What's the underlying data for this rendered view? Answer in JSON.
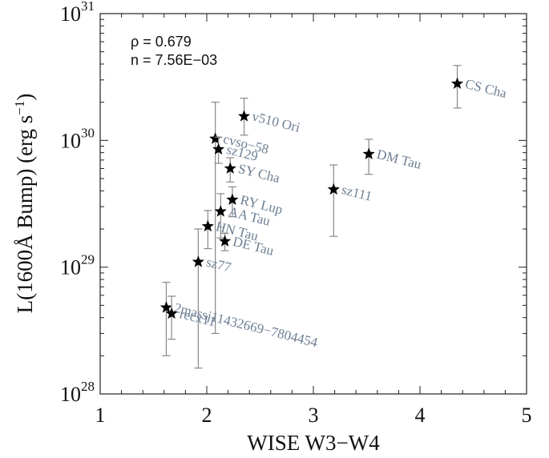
{
  "chart_data": {
    "type": "scatter",
    "xlabel": "WISE W3−W4",
    "ylabel": "L(1600Å Bump) (erg s",
    "ylabel_sup": "−1",
    "ylabel_close": ")",
    "xlim": [
      1,
      5
    ],
    "ylim": [
      1e+28,
      1e+31
    ],
    "yscale": "log",
    "x_ticks": [
      1,
      2,
      3,
      4,
      5
    ],
    "x_tick_labels": [
      "1",
      "2",
      "3",
      "4",
      "5"
    ],
    "y_ticks": [
      {
        "value": 1e+28,
        "base": "10",
        "exp": "28"
      },
      {
        "value": 1e+29,
        "base": "10",
        "exp": "29"
      },
      {
        "value": 1e+30,
        "base": "10",
        "exp": "30"
      },
      {
        "value": 1e+31,
        "base": "10",
        "exp": "31"
      }
    ],
    "annotations": [
      "ρ = 0.679",
      "n = 7.56E−03"
    ],
    "grid": false,
    "points": [
      {
        "label": "CS Cha",
        "x": 4.35,
        "y": 2.8e+30,
        "ylo": 1.8e+30,
        "yhi": 3.9e+30
      },
      {
        "label": "v510 Ori",
        "x": 2.35,
        "y": 1.55e+30,
        "ylo": 1.1e+30,
        "yhi": 2.15e+30
      },
      {
        "label": "cvso−58",
        "x": 2.08,
        "y": 1.03e+30,
        "ylo": 3e+28,
        "yhi": 2e+30
      },
      {
        "label": "sz129",
        "x": 2.11,
        "y": 8.5e+29,
        "ylo": 6.6e+29,
        "yhi": 1.06e+30
      },
      {
        "label": "SY Cha",
        "x": 2.22,
        "y": 6e+29,
        "ylo": 4.7e+29,
        "yhi": 7.3e+29
      },
      {
        "label": "DM Tau",
        "x": 3.52,
        "y": 7.8e+29,
        "ylo": 5.4e+29,
        "yhi": 1.02e+30
      },
      {
        "label": "sz111",
        "x": 3.19,
        "y": 4.1e+29,
        "ylo": 1.75e+29,
        "yhi": 6.4e+29
      },
      {
        "label": "RY Lup",
        "x": 2.24,
        "y": 3.4e+29,
        "ylo": 2.5e+29,
        "yhi": 4.3e+29
      },
      {
        "label": "AA Tau",
        "x": 2.13,
        "y": 2.75e+29,
        "ylo": 1.7e+29,
        "yhi": 3.8e+29
      },
      {
        "label": "HN Tau",
        "x": 2.01,
        "y": 2.1e+29,
        "ylo": 1.4e+29,
        "yhi": 2.8e+29
      },
      {
        "label": "DE Tau",
        "x": 2.17,
        "y": 1.6e+29,
        "ylo": 1.35e+29,
        "yhi": 1.85e+29
      },
      {
        "label": "sz77",
        "x": 1.92,
        "y": 1.1e+29,
        "ylo": 1.6e+28,
        "yhi": 2e+29
      },
      {
        "label": "2massj11432669−7804454",
        "x": 1.62,
        "y": 4.8e+28,
        "ylo": 2e+28,
        "yhi": 7.6e+28
      },
      {
        "label": "recx11",
        "x": 1.67,
        "y": 4.3e+28,
        "ylo": 2.7e+28,
        "yhi": 5.9e+28
      }
    ]
  }
}
